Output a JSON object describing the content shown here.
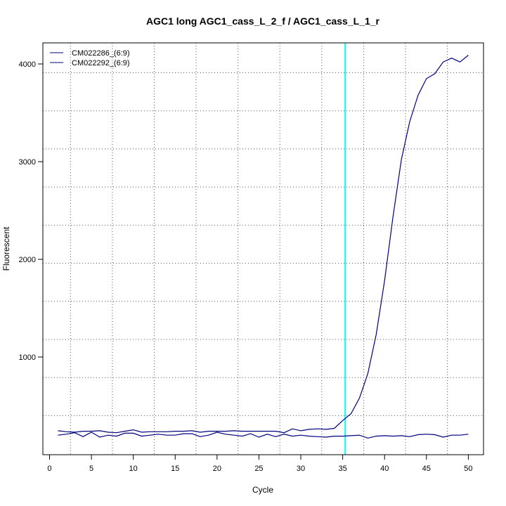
{
  "chart_data": {
    "type": "line",
    "title": "AGC1 long AGC1_cass_L_2_f / AGC1_cass_L_1_r",
    "xlabel": "Cycle",
    "ylabel": "Fluorescent",
    "xlim": [
      0,
      52
    ],
    "ylim": [
      0,
      4300
    ],
    "xticks": [
      0,
      5,
      10,
      15,
      20,
      25,
      30,
      35,
      40,
      45,
      50
    ],
    "yticks": [
      1000,
      2000,
      3000,
      4000
    ],
    "grid": true,
    "legend_position": "top-left",
    "threshold_x": 35.3,
    "threshold_color": "#00ffff",
    "x": [
      1,
      2,
      3,
      4,
      5,
      6,
      7,
      8,
      9,
      10,
      11,
      12,
      13,
      14,
      15,
      16,
      17,
      18,
      19,
      20,
      21,
      22,
      23,
      24,
      25,
      26,
      27,
      28,
      29,
      30,
      31,
      32,
      33,
      34,
      35,
      36,
      37,
      38,
      39,
      40,
      41,
      42,
      43,
      44,
      45,
      46,
      47,
      48,
      49,
      50
    ],
    "series": [
      {
        "name": "CM022286_(6:9)",
        "color": "#00007f",
        "values": [
          200,
          210,
          225,
          185,
          230,
          180,
          200,
          190,
          220,
          220,
          190,
          200,
          210,
          200,
          200,
          215,
          215,
          185,
          200,
          230,
          210,
          200,
          190,
          215,
          180,
          210,
          185,
          210,
          190,
          200,
          190,
          185,
          180,
          190,
          190,
          195,
          200,
          170,
          190,
          195,
          190,
          195,
          185,
          205,
          210,
          205,
          180,
          200,
          200,
          210
        ]
      },
      {
        "name": "CM022292_(6:9)",
        "color": "#00007f",
        "values": [
          245,
          235,
          230,
          240,
          240,
          245,
          230,
          225,
          240,
          255,
          230,
          235,
          235,
          235,
          240,
          240,
          245,
          230,
          240,
          240,
          240,
          245,
          240,
          240,
          240,
          240,
          240,
          225,
          265,
          245,
          260,
          265,
          260,
          270,
          350,
          420,
          580,
          830,
          1230,
          1780,
          2430,
          3020,
          3410,
          3680,
          3850,
          3900,
          4020,
          4060,
          4020,
          4090
        ]
      }
    ]
  }
}
